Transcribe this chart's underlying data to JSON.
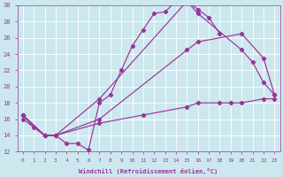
{
  "xlabel": "Windchill (Refroidissement éolien,°C)",
  "bg_color": "#cce8ee",
  "line_color": "#993399",
  "xlim": [
    -0.5,
    23.5
  ],
  "ylim": [
    12,
    30
  ],
  "yticks": [
    12,
    14,
    16,
    18,
    20,
    22,
    24,
    26,
    28,
    30
  ],
  "xticks": [
    0,
    1,
    2,
    3,
    4,
    5,
    6,
    7,
    8,
    9,
    10,
    11,
    12,
    13,
    14,
    15,
    16,
    17,
    18,
    19,
    20,
    21,
    22,
    23
  ],
  "line1_x": [
    0,
    1,
    2,
    3,
    4,
    5,
    6,
    7,
    8,
    9,
    10,
    11,
    12,
    13,
    14,
    15,
    16,
    17,
    18
  ],
  "line1_y": [
    16.5,
    15.0,
    14.0,
    14.0,
    13.0,
    13.0,
    12.2,
    18.0,
    19.0,
    22.0,
    25.0,
    27.0,
    29.0,
    29.2,
    30.5,
    30.5,
    29.5,
    28.5,
    26.5
  ],
  "line2_x": [
    0,
    2,
    3,
    7,
    15,
    16,
    20,
    21,
    22,
    23
  ],
  "line2_y": [
    16.5,
    14.0,
    14.0,
    18.5,
    30.5,
    29.0,
    24.5,
    23.0,
    20.5,
    19.0
  ],
  "line3_x": [
    0,
    2,
    3,
    7,
    15,
    16,
    20,
    22,
    23
  ],
  "line3_y": [
    16.5,
    14.0,
    14.0,
    16.0,
    24.5,
    25.5,
    26.5,
    23.5,
    19.0
  ],
  "line4_x": [
    0,
    2,
    3,
    7,
    11,
    15,
    16,
    18,
    19,
    20,
    22,
    23
  ],
  "line4_y": [
    16.0,
    14.0,
    14.0,
    15.5,
    16.5,
    17.5,
    18.0,
    18.0,
    18.0,
    18.0,
    18.5,
    18.5
  ]
}
